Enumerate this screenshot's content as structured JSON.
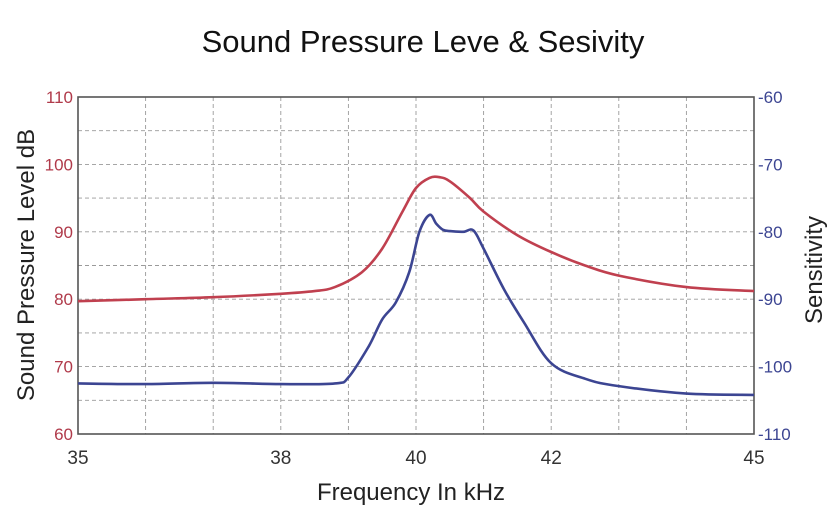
{
  "chart_data": {
    "type": "line",
    "title": "Sound Pressure Leve & Sesivity",
    "xlabel": "Frequency In kHz",
    "ylabel": "Sound Pressure Level dB",
    "y2label": "Sensitivity",
    "xlim": [
      35,
      45
    ],
    "ylim": [
      60,
      110
    ],
    "y2lim": [
      -110,
      -60
    ],
    "x_ticks": [
      "35",
      "38",
      "40",
      "42",
      "45"
    ],
    "x_tick_values": [
      35,
      38,
      40,
      42,
      45
    ],
    "y_ticks": [
      "60",
      "70",
      "80",
      "90",
      "100",
      "110"
    ],
    "y_tick_values": [
      60,
      70,
      80,
      90,
      100,
      110
    ],
    "y2_ticks": [
      "-60",
      "-70",
      "-80",
      "-90",
      "-100",
      "-110"
    ],
    "y2_tick_values": [
      -60,
      -70,
      -80,
      -90,
      -100,
      -110
    ],
    "grid": true,
    "colors": {
      "spl": "#c0404f",
      "sensitivity": "#3c4592",
      "left_axis": "#b03a4a",
      "right_axis": "#3c4592",
      "grid": "#9a9a9a"
    },
    "series": [
      {
        "key": "spl",
        "axis": "left",
        "x": [
          35,
          36,
          37,
          38,
          38.5,
          38.8,
          39.2,
          39.5,
          39.8,
          40.0,
          40.2,
          40.35,
          40.5,
          40.8,
          41.0,
          41.5,
          42.0,
          42.5,
          43.0,
          44.0,
          45.0
        ],
        "values": [
          79.7,
          80.0,
          80.3,
          80.8,
          81.2,
          81.8,
          84.0,
          87.5,
          93.0,
          96.5,
          98.0,
          98.1,
          97.5,
          95.0,
          93.0,
          89.5,
          87.0,
          85.0,
          83.5,
          81.8,
          81.2
        ]
      },
      {
        "key": "sensitivity",
        "axis": "right",
        "x": [
          35,
          36,
          37,
          38,
          38.8,
          39.0,
          39.3,
          39.5,
          39.7,
          39.9,
          40.05,
          40.2,
          40.3,
          40.4,
          40.5,
          40.7,
          40.85,
          41.0,
          41.3,
          41.6,
          42.0,
          42.5,
          43.0,
          44.0,
          45.0
        ],
        "values": [
          -102.5,
          -102.6,
          -102.4,
          -102.6,
          -102.5,
          -101.6,
          -97.0,
          -93.0,
          -90.5,
          -86.0,
          -80.0,
          -77.5,
          -78.8,
          -79.7,
          -79.9,
          -80.0,
          -79.8,
          -82.5,
          -88.5,
          -93.5,
          -99.5,
          -101.8,
          -102.9,
          -104.0,
          -104.2
        ]
      }
    ]
  }
}
